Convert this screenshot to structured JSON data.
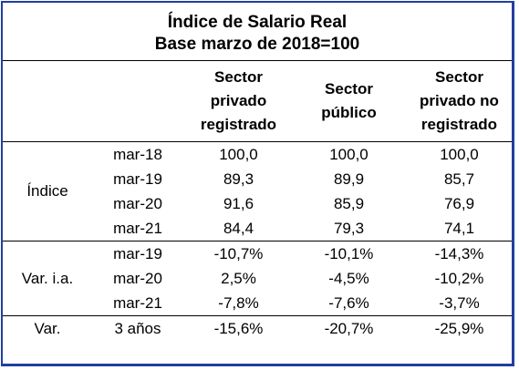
{
  "chart_data": {
    "type": "table",
    "title": "Índice de Salario Real",
    "subtitle": "Base marzo de  2018=100",
    "columns": [
      "Sector privado registrado",
      "Sector público",
      "Sector privado no registrado"
    ],
    "column_lines": [
      [
        "Sector",
        "privado",
        "registrado"
      ],
      [
        "Sector",
        "público"
      ],
      [
        "Sector",
        "privado no",
        "registrado"
      ]
    ],
    "groups": [
      {
        "label": "Índice",
        "rows": [
          {
            "period": "mar-18",
            "values": [
              "100,0",
              "100,0",
              "100,0"
            ]
          },
          {
            "period": "mar-19",
            "values": [
              "89,3",
              "89,9",
              "85,7"
            ]
          },
          {
            "period": "mar-20",
            "values": [
              "91,6",
              "85,9",
              "76,9"
            ]
          },
          {
            "period": "mar-21",
            "values": [
              "84,4",
              "79,3",
              "74,1"
            ]
          }
        ]
      },
      {
        "label": "Var. i.a.",
        "rows": [
          {
            "period": "mar-19",
            "values": [
              "-10,7%",
              "-10,1%",
              "-14,3%"
            ]
          },
          {
            "period": "mar-20",
            "values": [
              "2,5%",
              "-4,5%",
              "-10,2%"
            ]
          },
          {
            "period": "mar-21",
            "values": [
              "-7,8%",
              "-7,6%",
              "-3,7%"
            ]
          }
        ]
      },
      {
        "label": "Var.",
        "rows": [
          {
            "period": "3 años",
            "values": [
              "-15,6%",
              "-20,7%",
              "-25,9%"
            ]
          }
        ]
      }
    ]
  },
  "colors": {
    "border": "#1f3fa0",
    "text": "#000000"
  }
}
